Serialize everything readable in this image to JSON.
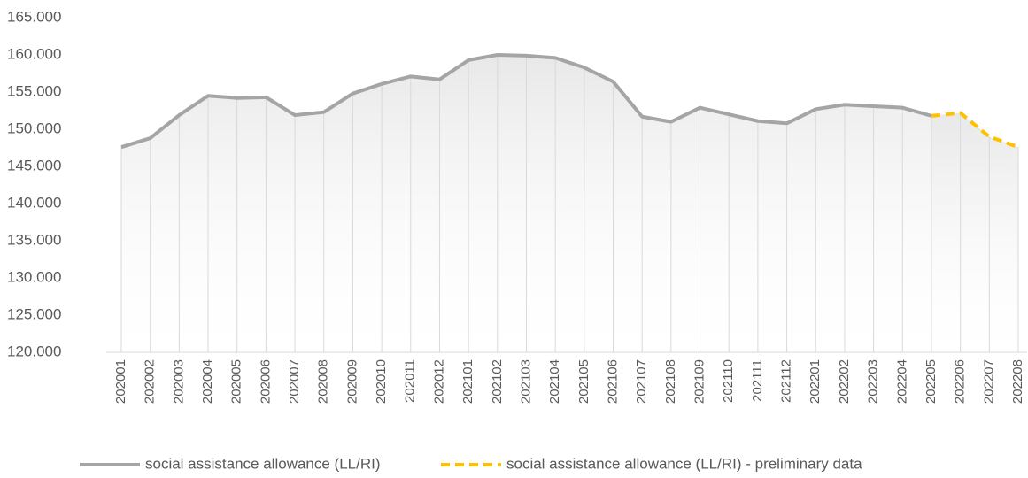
{
  "chart_data": {
    "type": "line",
    "categories": [
      "202001",
      "202002",
      "202003",
      "202004",
      "202005",
      "202006",
      "202007",
      "202008",
      "202009",
      "202010",
      "202011",
      "202012",
      "202101",
      "202102",
      "202103",
      "202104",
      "202105",
      "202106",
      "202107",
      "202108",
      "202109",
      "202110",
      "202111",
      "202112",
      "202201",
      "202202",
      "202203",
      "202204",
      "202205",
      "202206",
      "202207",
      "202208"
    ],
    "series": [
      {
        "name": "social assistance allowance (LL/RI)",
        "color": "#a5a5a5",
        "dashed": false,
        "values": [
          147600,
          148800,
          151900,
          154500,
          154200,
          154300,
          151900,
          152300,
          154800,
          156100,
          157100,
          156700,
          159300,
          160000,
          159900,
          159600,
          158300,
          156400,
          151700,
          151000,
          152900,
          152000,
          151100,
          150800,
          152700,
          153300,
          153100,
          152900,
          151800,
          null,
          null,
          null
        ]
      },
      {
        "name": "social assistance allowance (LL/RI) - preliminary data",
        "color": "#ffc000",
        "dashed": true,
        "values": [
          null,
          null,
          null,
          null,
          null,
          null,
          null,
          null,
          null,
          null,
          null,
          null,
          null,
          null,
          null,
          null,
          null,
          null,
          null,
          null,
          null,
          null,
          null,
          null,
          null,
          null,
          null,
          null,
          151800,
          152200,
          149000,
          147600
        ]
      }
    ],
    "ylim": [
      120000,
      165000
    ],
    "yticks": [
      {
        "value": 120000,
        "label": "120.000"
      },
      {
        "value": 125000,
        "label": "125.000"
      },
      {
        "value": 130000,
        "label": "130.000"
      },
      {
        "value": 135000,
        "label": "135.000"
      },
      {
        "value": 140000,
        "label": "140.000"
      },
      {
        "value": 145000,
        "label": "145.000"
      },
      {
        "value": 150000,
        "label": "150.000"
      },
      {
        "value": 155000,
        "label": "155.000"
      },
      {
        "value": 160000,
        "label": "160.000"
      },
      {
        "value": 165000,
        "label": "165.000"
      }
    ],
    "drop_lines": true,
    "area_fill": true
  }
}
